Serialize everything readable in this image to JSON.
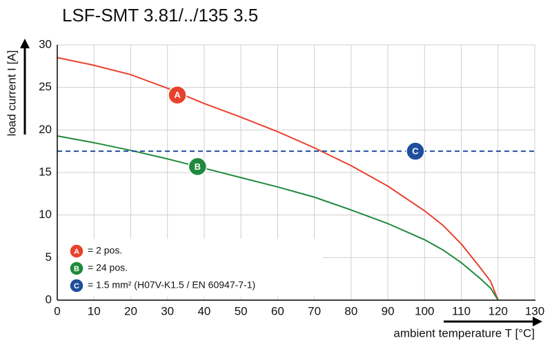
{
  "chart_data": {
    "type": "line",
    "title": "LSF-SMT 3.81/../135 3.5",
    "x_label": "ambient temperature T [°C]",
    "y_label": "load current I [A]",
    "xlim": [
      0,
      130
    ],
    "ylim": [
      0,
      30
    ],
    "xticks": [
      0,
      10,
      20,
      30,
      40,
      50,
      60,
      70,
      80,
      90,
      100,
      110,
      120,
      130
    ],
    "yticks": [
      0,
      5,
      10,
      15,
      20,
      25,
      30
    ],
    "grid": true,
    "legend": "lower left",
    "series": [
      {
        "name": "A",
        "description": "= 2 pos.",
        "color": "#e8412c",
        "dashed": false,
        "x": [
          0,
          10,
          20,
          30,
          40,
          50,
          60,
          70,
          80,
          90,
          100,
          105,
          110,
          115,
          118,
          120
        ],
        "values": [
          28.5,
          27.6,
          26.5,
          24.9,
          23.1,
          21.5,
          19.8,
          17.9,
          15.8,
          13.4,
          10.5,
          8.8,
          6.6,
          3.9,
          2.2,
          0
        ],
        "marker_x": 32.7,
        "marker_y": 24.1
      },
      {
        "name": "B",
        "description": "= 24 pos.",
        "color": "#1f8a3c",
        "dashed": false,
        "x": [
          0,
          10,
          20,
          30,
          40,
          50,
          60,
          70,
          80,
          90,
          100,
          105,
          110,
          115,
          118,
          120
        ],
        "values": [
          19.3,
          18.5,
          17.6,
          16.6,
          15.5,
          14.4,
          13.3,
          12.1,
          10.6,
          9.0,
          7.1,
          5.9,
          4.4,
          2.6,
          1.4,
          0
        ],
        "marker_x": 38.2,
        "marker_y": 15.7
      },
      {
        "name": "C",
        "description": "= 1.5 mm² (H07V-K1.5 / EN 60947-7-1)",
        "color": "#1f4e9c",
        "dashed": true,
        "x": [
          0,
          130
        ],
        "values": [
          17.5,
          17.5
        ],
        "marker_x": 97.5,
        "marker_y": 17.5
      }
    ]
  }
}
